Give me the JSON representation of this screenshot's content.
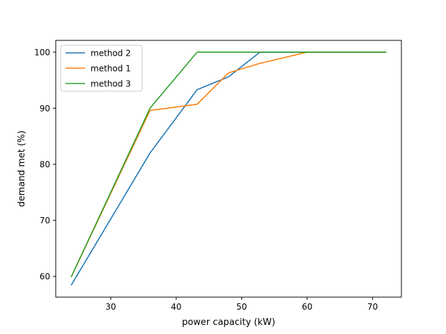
{
  "chart_data": {
    "type": "line",
    "title": "",
    "xlabel": "power capacity (kW)",
    "ylabel": "demand met (%)",
    "xlim": [
      21.6,
      74.4
    ],
    "ylim": [
      56.3,
      102.1
    ],
    "xticks": [
      30,
      40,
      50,
      60,
      70
    ],
    "yticks": [
      60,
      70,
      80,
      90,
      100
    ],
    "grid": false,
    "legend_position": "top-left",
    "series": [
      {
        "name": "method 2",
        "color": "#1f77b4",
        "x": [
          24,
          36,
          43.2,
          48,
          52.8,
          60,
          72
        ],
        "y": [
          58.5,
          82.0,
          93.3,
          95.6,
          100,
          100,
          100
        ]
      },
      {
        "name": "method 1",
        "color": "#ff7f0e",
        "x": [
          24,
          36,
          43.2,
          48,
          52.8,
          60,
          72
        ],
        "y": [
          60.0,
          89.6,
          90.7,
          96.3,
          98.0,
          100,
          100
        ]
      },
      {
        "name": "method 3",
        "color": "#2ca02c",
        "x": [
          24,
          36,
          43.2,
          48,
          52.8,
          60,
          72
        ],
        "y": [
          60.0,
          90.0,
          100,
          100,
          100,
          100,
          100
        ]
      }
    ]
  }
}
